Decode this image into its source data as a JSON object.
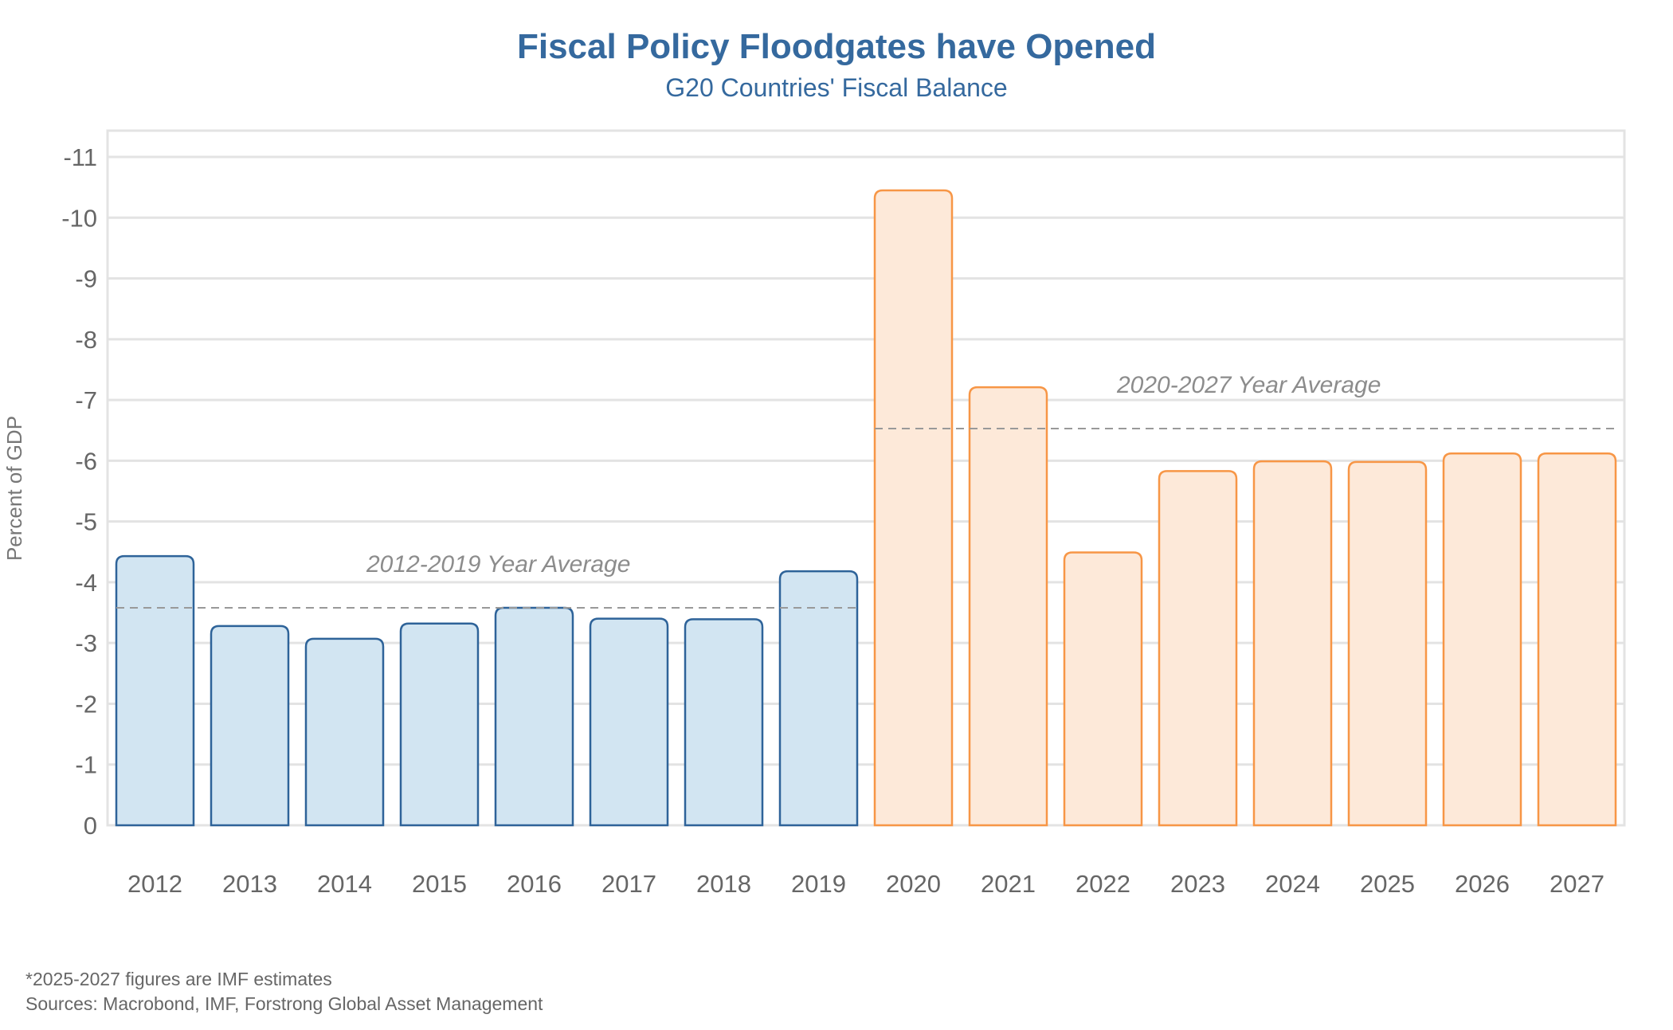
{
  "chart_data": {
    "type": "bar",
    "title": "Fiscal Policy Floodgates have Opened",
    "subtitle": "G20 Countries' Fiscal Balance",
    "xlabel": "",
    "ylabel": "Percent of GDP",
    "ylim": [
      0,
      -11
    ],
    "y_ticks": [
      "-11",
      "-10",
      "-9",
      "-8",
      "-7",
      "-6",
      "-5",
      "-4",
      "-3",
      "-2",
      "-1",
      "0"
    ],
    "y_tick_values": [
      -11,
      -10,
      -9,
      -8,
      -7,
      -6,
      -5,
      -4,
      -3,
      -2,
      -1,
      0
    ],
    "y_axis_inverted": true,
    "grid": true,
    "categories": [
      "2012",
      "2013",
      "2014",
      "2015",
      "2016",
      "2017",
      "2018",
      "2019",
      "2020",
      "2021",
      "2022",
      "2023",
      "2024",
      "2025",
      "2026",
      "2027"
    ],
    "series": [
      {
        "name": "2012-2019",
        "color_fill": "#d2e5f2",
        "color_stroke": "#2e6399",
        "categories": [
          "2012",
          "2013",
          "2014",
          "2015",
          "2016",
          "2017",
          "2018",
          "2019"
        ],
        "values": [
          -4.43,
          -3.28,
          -3.07,
          -3.32,
          -3.58,
          -3.4,
          -3.39,
          -4.18
        ]
      },
      {
        "name": "2020-2027",
        "color_fill": "#fde9d9",
        "color_stroke": "#f79646",
        "categories": [
          "2020",
          "2021",
          "2022",
          "2023",
          "2024",
          "2025",
          "2026",
          "2027"
        ],
        "values": [
          -10.45,
          -7.21,
          -4.49,
          -5.83,
          -5.99,
          -5.98,
          -6.12,
          -6.12
        ]
      }
    ],
    "annotations": [
      {
        "label": "2012-2019 Year Average",
        "value": -3.58,
        "from": "2012",
        "to": "2019",
        "style": "dashed",
        "color": "#999999"
      },
      {
        "label": "2020-2027 Year Average",
        "value": -6.53,
        "from": "2020",
        "to": "2027",
        "style": "dashed",
        "color": "#999999"
      }
    ],
    "footnotes": [
      "*2025-2027 figures are IMF estimates",
      "Sources: Macrobond, IMF, Forstrong Global Asset Management"
    ]
  },
  "colors": {
    "title": "#35699e",
    "grid": "#e3e3e3",
    "tick_text": "#666666"
  }
}
